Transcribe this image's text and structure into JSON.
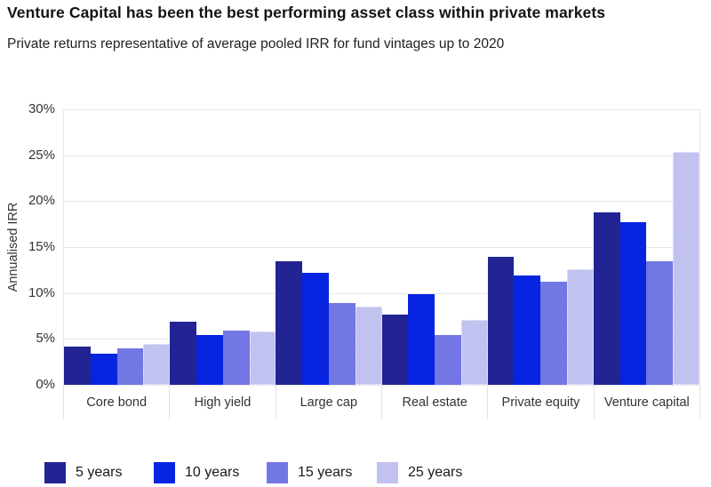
{
  "title": "Venture Capital has been the best performing asset class within private markets",
  "subtitle": "Private returns representative of average pooled IRR for fund vintages up to 2020",
  "chart_data": {
    "type": "bar",
    "title": "Venture Capital has been the best performing asset class within private markets",
    "subtitle": "Private returns representative of average pooled IRR for fund vintages up to 2020",
    "categories": [
      "Core bond",
      "High yield",
      "Large cap",
      "Real estate",
      "Private equity",
      "Venture capital"
    ],
    "series": [
      {
        "name": "5 years",
        "color": "#212492",
        "values": [
          4.2,
          6.9,
          13.5,
          7.6,
          13.9,
          18.8
        ]
      },
      {
        "name": "10 years",
        "color": "#0724e1",
        "values": [
          3.4,
          5.4,
          12.2,
          9.9,
          11.9,
          17.7
        ]
      },
      {
        "name": "15 years",
        "color": "#7377e3",
        "values": [
          4.0,
          5.9,
          8.9,
          5.4,
          11.2,
          13.5
        ]
      },
      {
        "name": "25 years",
        "color": "#c1c2f0",
        "values": [
          4.5,
          5.8,
          8.5,
          7.1,
          12.6,
          25.4
        ]
      }
    ],
    "xlabel": "",
    "ylabel": "Annualised IRR",
    "ylim": [
      0,
      30
    ],
    "ytick_step": 5,
    "ytick_suffix": "%",
    "grid": true,
    "legend_position": "bottom"
  }
}
